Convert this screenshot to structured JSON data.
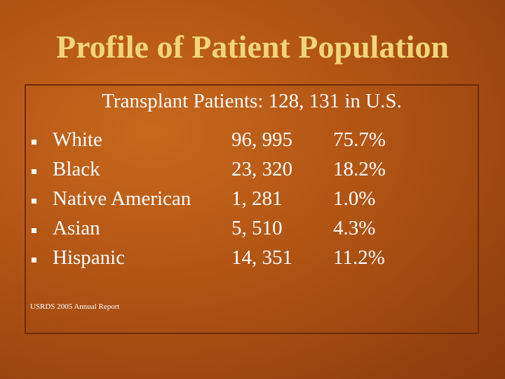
{
  "header": {
    "title": "Profile of Patient Population"
  },
  "box": {
    "subtitle": "Transplant Patients: 128, 131 in U.S.",
    "rows": [
      [
        "White",
        "96, 995",
        "75.7%"
      ],
      [
        "Black",
        "23, 320",
        "18.2%"
      ],
      [
        "Native American",
        "1, 281",
        "1.0%"
      ],
      [
        "Asian",
        "5, 510",
        "4.3%"
      ],
      [
        "Hispanic",
        "14, 351",
        "11.2%"
      ]
    ],
    "source": "USRDS 2005 Annual Report"
  }
}
